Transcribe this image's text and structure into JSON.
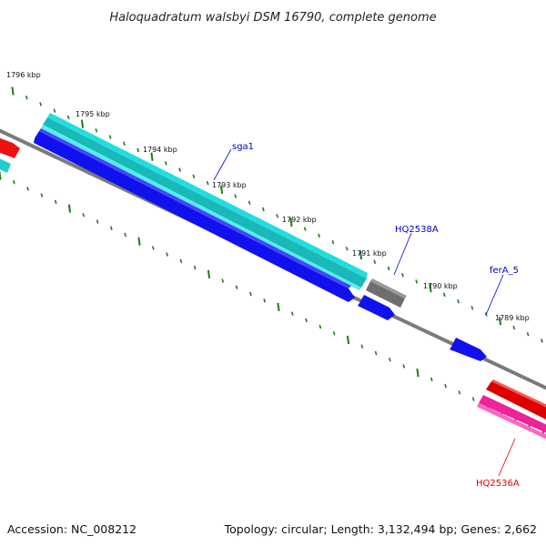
{
  "title": "Haloquadratum walsbyi DSM 16790, complete genome",
  "footer": {
    "accession": "Accession: NC_008212",
    "summary": "Topology: circular; Length: 3,132,494 bp; Genes: 2,662"
  },
  "ticks": [
    "1796 kbp",
    "1795 kbp",
    "1794 kbp",
    "1793 kbp",
    "1792 kbp",
    "1791 kbp",
    "1790 kbp",
    "1789 kbp"
  ],
  "genes": [
    {
      "name": "sga1",
      "color": "#0000cc"
    },
    {
      "name": "HQ2538A",
      "color": "#0000cc"
    },
    {
      "name": "ferA_5",
      "color": "#0000cc"
    },
    {
      "name": "HQ2536A",
      "color": "#dd0000"
    }
  ],
  "colors": {
    "backbone": "#7a7a7a",
    "tick": "#1f7a1f",
    "cyan": "#22cccc",
    "blue": "#1111ee",
    "gray": "#6e6e6e",
    "red": "#ee1111",
    "pink": "#ee2299"
  }
}
